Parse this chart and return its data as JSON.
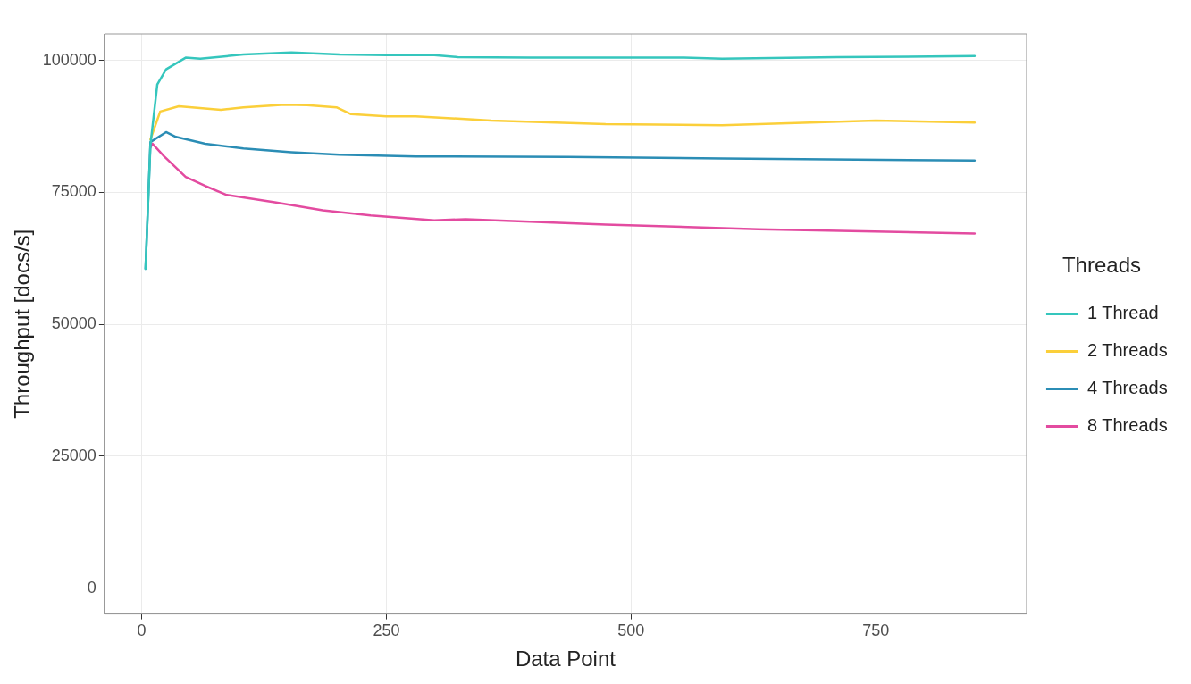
{
  "chart_data": {
    "type": "line",
    "xlabel": "Data Point",
    "ylabel": "Throughput [docs/s]",
    "legend_title": "Threads",
    "legend": "right",
    "grid": true,
    "marker": "none",
    "line_style": "solid",
    "xlim": [
      -38,
      904
    ],
    "ylim": [
      -4900,
      105000
    ],
    "xticks": [
      0,
      250,
      500,
      750
    ],
    "yticks": [
      0,
      25000,
      50000,
      75000,
      100000
    ],
    "series": [
      {
        "name": "1 Thread",
        "color": "#35c6bd",
        "x": [
          4,
          9,
          16,
          25,
          45,
          60,
          104,
          153,
          202,
          250,
          299,
          323,
          397,
          554,
          593,
          710,
          851
        ],
        "values": [
          60500,
          84000,
          95400,
          98300,
          100500,
          100300,
          101100,
          101500,
          101100,
          101000,
          101000,
          100600,
          100500,
          100500,
          100300,
          100600,
          100800
        ]
      },
      {
        "name": "2 Threads",
        "color": "#fbcf3a",
        "x": [
          9,
          19,
          38,
          81,
          104,
          146,
          169,
          199,
          214,
          250,
          280,
          357,
          474,
          593,
          750,
          851
        ],
        "values": [
          85000,
          90300,
          91300,
          90600,
          91100,
          91600,
          91500,
          91100,
          89800,
          89400,
          89400,
          88600,
          87900,
          87700,
          88600,
          88200
        ]
      },
      {
        "name": "4 Threads",
        "color": "#2b8db5",
        "x": [
          4,
          9,
          25,
          35,
          65,
          104,
          153,
          202,
          280,
          436,
          593,
          851
        ],
        "values": [
          60500,
          84500,
          86400,
          85500,
          84200,
          83300,
          82600,
          82100,
          81800,
          81700,
          81400,
          81000
        ]
      },
      {
        "name": "8 Threads",
        "color": "#e34ba0",
        "x": [
          9,
          11,
          23,
          45,
          65,
          87,
          136,
          185,
          234,
          299,
          331,
          474,
          630,
          851
        ],
        "values": [
          83500,
          84200,
          81800,
          77900,
          76200,
          74500,
          73100,
          71600,
          70600,
          69700,
          69900,
          68900,
          68000,
          67200
        ]
      }
    ]
  }
}
